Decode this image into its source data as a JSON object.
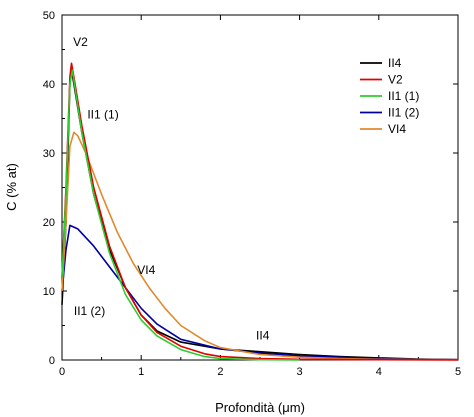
{
  "chart_data": {
    "type": "line",
    "xlabel": "Profondità (μm)",
    "ylabel": "C (% at)",
    "xlim": [
      0,
      5
    ],
    "ylim": [
      0,
      50
    ],
    "xticks": [
      0,
      1,
      2,
      3,
      4,
      5
    ],
    "yticks": [
      0,
      10,
      20,
      30,
      40,
      50
    ],
    "xtick_labels": [
      "0",
      "1",
      "2",
      "3",
      "4",
      "5"
    ],
    "ytick_labels": [
      "0",
      "10",
      "20",
      "30",
      "40",
      "50"
    ],
    "grid": false,
    "legend_position": "top-right",
    "series": [
      {
        "name": "II4",
        "color": "#000000",
        "points": [
          [
            0.0,
            8
          ],
          [
            0.05,
            20
          ],
          [
            0.1,
            40
          ],
          [
            0.12,
            42
          ],
          [
            0.15,
            40
          ],
          [
            0.25,
            33
          ],
          [
            0.4,
            24
          ],
          [
            0.6,
            16
          ],
          [
            0.8,
            10.5
          ],
          [
            1.0,
            6.5
          ],
          [
            1.2,
            4.2
          ],
          [
            1.5,
            2.6
          ],
          [
            2.0,
            1.6
          ],
          [
            2.5,
            1.2
          ],
          [
            3.0,
            0.8
          ],
          [
            3.5,
            0.5
          ],
          [
            4.0,
            0.3
          ],
          [
            4.5,
            0.15
          ],
          [
            5.0,
            0.05
          ]
        ]
      },
      {
        "name": "V2",
        "color": "#e00000",
        "points": [
          [
            0.0,
            12
          ],
          [
            0.05,
            25
          ],
          [
            0.1,
            41
          ],
          [
            0.12,
            43
          ],
          [
            0.15,
            41
          ],
          [
            0.25,
            34
          ],
          [
            0.4,
            25
          ],
          [
            0.6,
            16.5
          ],
          [
            0.8,
            10.5
          ],
          [
            1.0,
            6.5
          ],
          [
            1.2,
            4
          ],
          [
            1.5,
            2
          ],
          [
            1.8,
            0.9
          ],
          [
            2.0,
            0.5
          ],
          [
            2.5,
            0.2
          ],
          [
            3.0,
            0.1
          ],
          [
            4.0,
            0.05
          ],
          [
            5.0,
            0.02
          ]
        ]
      },
      {
        "name": "II1 (1)",
        "color": "#2ecc2e",
        "points": [
          [
            0.0,
            12
          ],
          [
            0.05,
            24
          ],
          [
            0.1,
            40
          ],
          [
            0.13,
            42
          ],
          [
            0.17,
            39
          ],
          [
            0.25,
            33
          ],
          [
            0.4,
            24
          ],
          [
            0.6,
            15.5
          ],
          [
            0.8,
            9.5
          ],
          [
            1.0,
            5.8
          ],
          [
            1.2,
            3.5
          ],
          [
            1.5,
            1.5
          ],
          [
            1.8,
            0.5
          ],
          [
            2.0,
            0.2
          ],
          [
            2.5,
            0.05
          ],
          [
            3.0,
            0.0
          ]
        ]
      },
      {
        "name": "II1 (2)",
        "color": "#0000a0",
        "points": [
          [
            0.0,
            10
          ],
          [
            0.05,
            16
          ],
          [
            0.1,
            19.5
          ],
          [
            0.2,
            19
          ],
          [
            0.4,
            16.5
          ],
          [
            0.6,
            13.5
          ],
          [
            0.8,
            10.5
          ],
          [
            1.0,
            7.5
          ],
          [
            1.2,
            5.2
          ],
          [
            1.5,
            3
          ],
          [
            2.0,
            1.6
          ],
          [
            2.5,
            1.0
          ],
          [
            3.0,
            0.6
          ],
          [
            3.5,
            0.4
          ],
          [
            4.0,
            0.2
          ],
          [
            4.5,
            0.1
          ],
          [
            5.0,
            0.05
          ]
        ]
      },
      {
        "name": "VI4",
        "color": "#e08a2c",
        "points": [
          [
            0.0,
            10
          ],
          [
            0.05,
            20
          ],
          [
            0.1,
            31
          ],
          [
            0.15,
            33
          ],
          [
            0.2,
            32.5
          ],
          [
            0.3,
            30
          ],
          [
            0.5,
            24
          ],
          [
            0.7,
            18.5
          ],
          [
            0.9,
            14
          ],
          [
            1.1,
            10.5
          ],
          [
            1.3,
            7.5
          ],
          [
            1.5,
            5
          ],
          [
            1.8,
            2.8
          ],
          [
            2.0,
            1.8
          ],
          [
            2.5,
            0.8
          ],
          [
            3.0,
            0.4
          ],
          [
            3.5,
            0.2
          ],
          [
            4.0,
            0.1
          ],
          [
            5.0,
            0.05
          ]
        ]
      }
    ],
    "annotations": [
      {
        "text": "V2",
        "x": 0.14,
        "y": 45.5
      },
      {
        "text": "II1 (1)",
        "x": 0.32,
        "y": 35
      },
      {
        "text": "VI4",
        "x": 0.95,
        "y": 12.5
      },
      {
        "text": "II1 (2)",
        "x": 0.15,
        "y": 6.5
      },
      {
        "text": "II4",
        "x": 2.45,
        "y": 3
      }
    ]
  }
}
